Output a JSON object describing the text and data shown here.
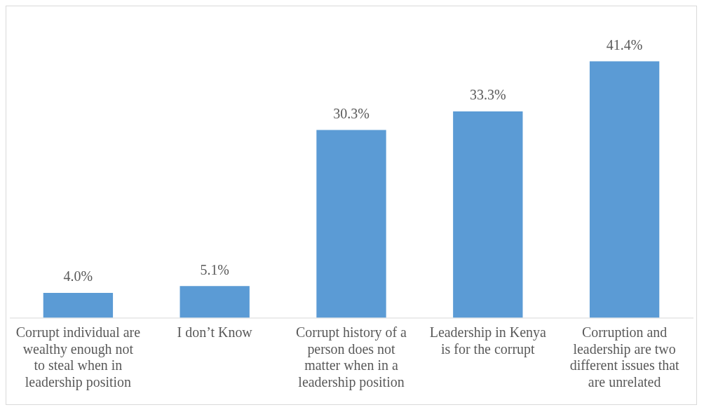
{
  "chart_data": {
    "type": "bar",
    "categories": [
      "Corrupt individual are wealthy enough not to steal when in leadership position",
      "I don’t Know",
      "Corrupt history of a person does not matter when in a leadership position",
      "Leadership in Kenya is for the corrupt",
      "Corruption and leadership are two different issues that are unrelated"
    ],
    "values": [
      4.0,
      5.1,
      30.3,
      33.3,
      41.4
    ],
    "color": "#5b9bd5",
    "value_labels": [
      "4.0%",
      "5.1%",
      "30.3%",
      "33.3%",
      "41.4%"
    ]
  }
}
